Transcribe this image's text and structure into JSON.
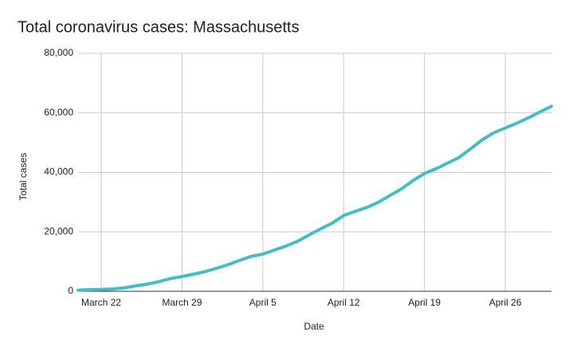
{
  "chart_data": {
    "type": "line",
    "title": "Total coronavirus cases: Massachusetts",
    "x_label": "Date",
    "y_label": "Total cases",
    "categories": [
      null,
      null,
      "March 22",
      null,
      null,
      null,
      null,
      null,
      null,
      "March 29",
      null,
      null,
      null,
      null,
      null,
      null,
      "April 5",
      null,
      null,
      null,
      null,
      null,
      null,
      "April 12",
      null,
      null,
      null,
      null,
      null,
      null,
      "April 19",
      null,
      null,
      null,
      null,
      null,
      null,
      "April 26",
      null,
      null,
      null,
      null
    ],
    "values": [
      413,
      525,
      646,
      777,
      1159,
      1838,
      2417,
      3240,
      4257,
      4955,
      5752,
      6620,
      7738,
      8966,
      10402,
      11736,
      12500,
      13837,
      15202,
      16790,
      18941,
      20974,
      22860,
      25475,
      26867,
      28163,
      29918,
      32181,
      34400,
      37200,
      39600,
      41200,
      43100,
      45000,
      47900,
      50900,
      53300,
      54900,
      56500,
      58300,
      60300,
      62200
    ],
    "color": "#46bdc6",
    "ylim": [
      0,
      80000
    ],
    "yticks": [
      0,
      {
        "value": 20000,
        "label": "20,000"
      },
      {
        "value": 40000,
        "label": "40,000"
      },
      {
        "value": 60000,
        "label": "60,000"
      },
      {
        "value": 80000,
        "label": "80,000"
      }
    ],
    "grid": true
  }
}
